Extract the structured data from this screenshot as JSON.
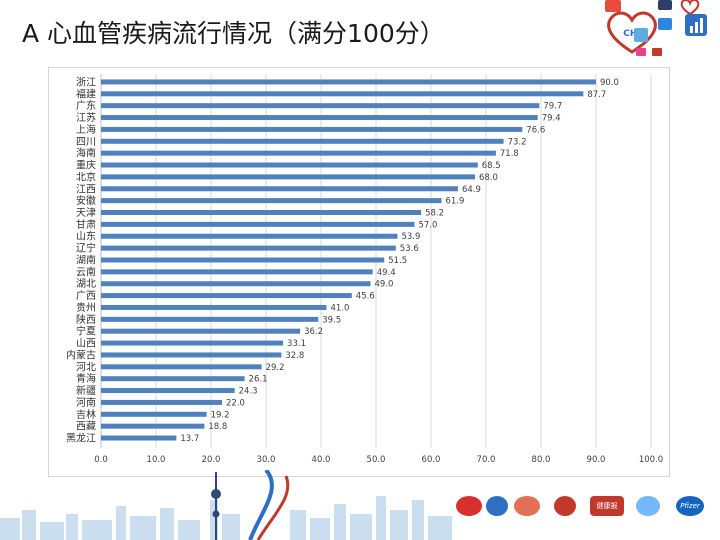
{
  "slide": {
    "title": "A  心血管疾病流行情况（满分100分）"
  },
  "colors": {
    "bar": "#4f81bd",
    "grid": "#d9d9d9",
    "text": "#404040",
    "accent_red": "#c0392b",
    "accent_blue": "#2e6fc4"
  },
  "logos": {
    "chi_text": "CHI",
    "pfizer_text": "Pfizer",
    "health_news_text": "健康报"
  },
  "chart_data": {
    "type": "bar",
    "orientation": "horizontal",
    "categories": [
      "浙江",
      "福建",
      "广东",
      "江苏",
      "上海",
      "四川",
      "海南",
      "重庆",
      "北京",
      "江西",
      "安徽",
      "天津",
      "甘肃",
      "山东",
      "辽宁",
      "湖南",
      "云南",
      "湖北",
      "广西",
      "贵州",
      "陕西",
      "宁夏",
      "山西",
      "内蒙古",
      "河北",
      "青海",
      "新疆",
      "河南",
      "吉林",
      "西藏",
      "黑龙江"
    ],
    "values": [
      90.0,
      87.7,
      79.7,
      79.4,
      76.6,
      73.2,
      71.8,
      68.5,
      68.0,
      64.9,
      61.9,
      58.2,
      57.0,
      53.9,
      53.6,
      51.5,
      49.4,
      49.0,
      45.6,
      41.0,
      39.5,
      36.2,
      33.1,
      32.8,
      29.2,
      26.1,
      24.3,
      22.0,
      19.2,
      18.8,
      13.7
    ],
    "value_labels": [
      "90.0",
      "87.7",
      "79.7",
      "79.4",
      "76.6",
      "73.2",
      "71.8",
      "68.5",
      "68.0",
      "64.9",
      "61.9",
      "58.2",
      "57.0",
      "53.9",
      "53.6",
      "51.5",
      "49.4",
      "49.0",
      "45.6",
      "41.0",
      "39.5",
      "36.2",
      "33.1",
      "32.8",
      "29.2",
      "26.1",
      "24.3",
      "22.0",
      "19.2",
      "18.8",
      "13.7"
    ],
    "x_ticks": [
      "0.0",
      "10.0",
      "20.0",
      "30.0",
      "40.0",
      "50.0",
      "60.0",
      "70.0",
      "80.0",
      "90.0",
      "100.0"
    ],
    "xlim": [
      0,
      100
    ],
    "grid": true,
    "legend": "none",
    "title": "",
    "xlabel": "",
    "ylabel": ""
  }
}
